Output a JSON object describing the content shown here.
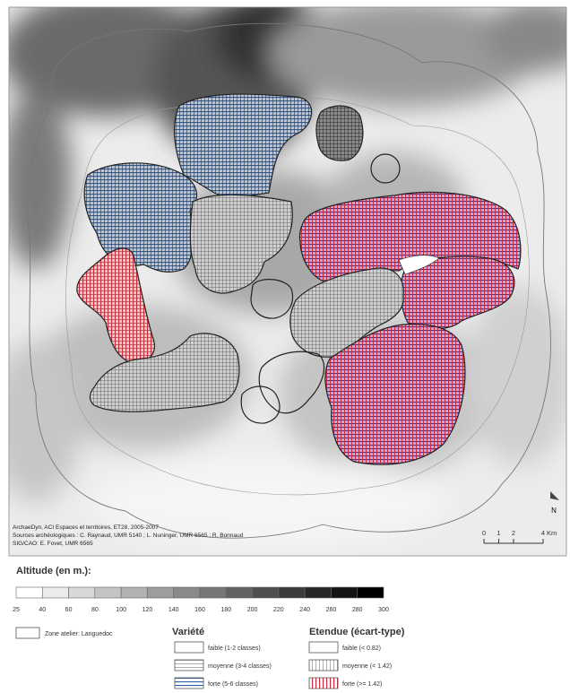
{
  "map": {
    "credits": [
      "ArchaeDyn, ACI Espaces et territoires, ET28, 2005-2007",
      "Sources archéologiques : C. Raynaud, UMR 5140 ; L. Nuninger, UMR 6565 ; R. Bonnaud",
      "SIG/CAO: E. Fovet, UMR 6565"
    ],
    "north": "N",
    "scale": {
      "ticks": [
        0,
        1,
        2,
        4
      ],
      "unit": "Km"
    }
  },
  "legend": {
    "altitude_title": "Altitude (en m.):",
    "altitude_labels": [
      25,
      40,
      60,
      80,
      100,
      120,
      140,
      160,
      180,
      200,
      220,
      240,
      260,
      280,
      300
    ],
    "zone": "Zone atelier: Languedoc",
    "variete": {
      "title": "Variété",
      "items": [
        "faible (1-2 classes)",
        "moyenne (3-4 classes)",
        "forte (5-6 classes)"
      ]
    },
    "etendue": {
      "title": "Etendue (écart-type)",
      "items": [
        "faible (< 0.82)",
        "moyenne (< 1.42)",
        "forte (>= 1.42)"
      ]
    }
  }
}
